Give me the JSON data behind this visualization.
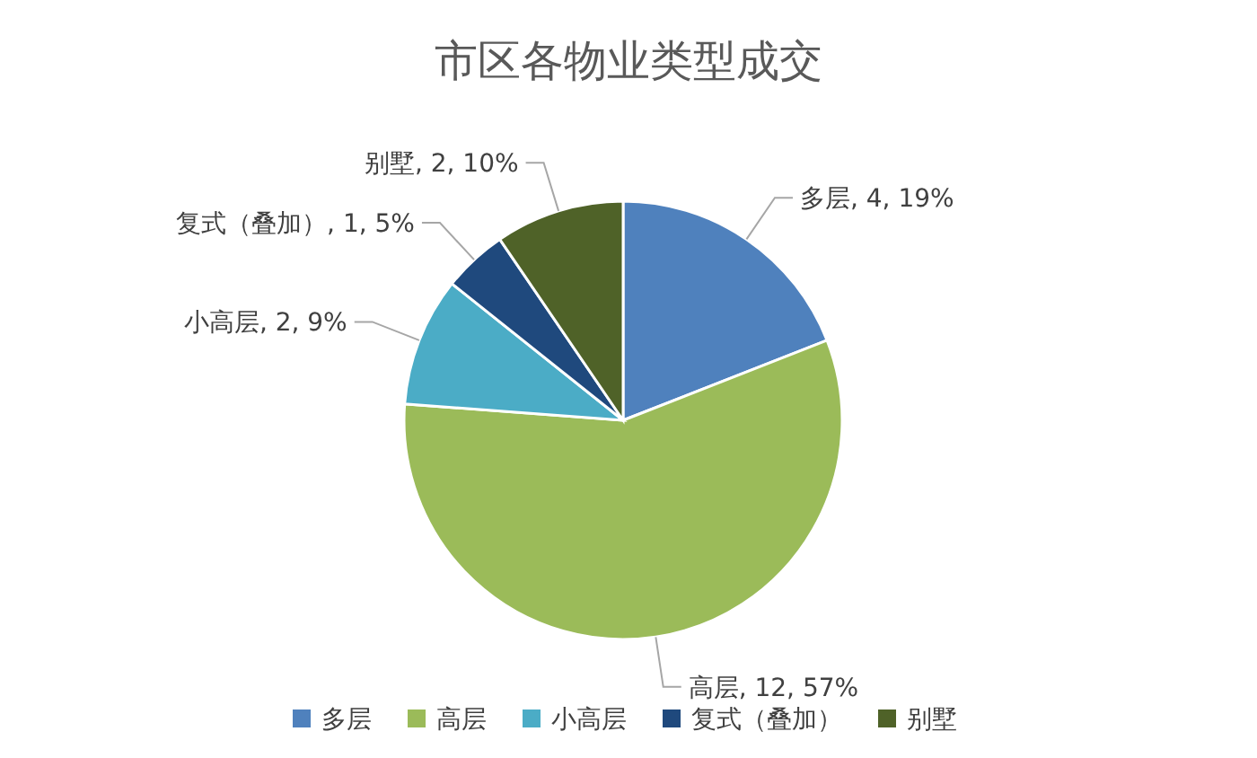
{
  "chart_data": {
    "type": "pie",
    "title": "市区各物业类型成交",
    "categories": [
      "多层",
      "高层",
      "小高层",
      "复式（叠加）",
      "别墅"
    ],
    "values": [
      4,
      12,
      2,
      1,
      2
    ],
    "colors": [
      "#4f81bd",
      "#9bbb59",
      "#4bacc6",
      "#1f497d",
      "#4f6228"
    ],
    "value_labels": [
      "多层, 4, 19%",
      "高层, 12, 57%",
      "小高层, 2, 9%",
      "复式（叠加）, 1, 5%",
      "别墅, 2, 10%"
    ],
    "legend": "bottom"
  }
}
